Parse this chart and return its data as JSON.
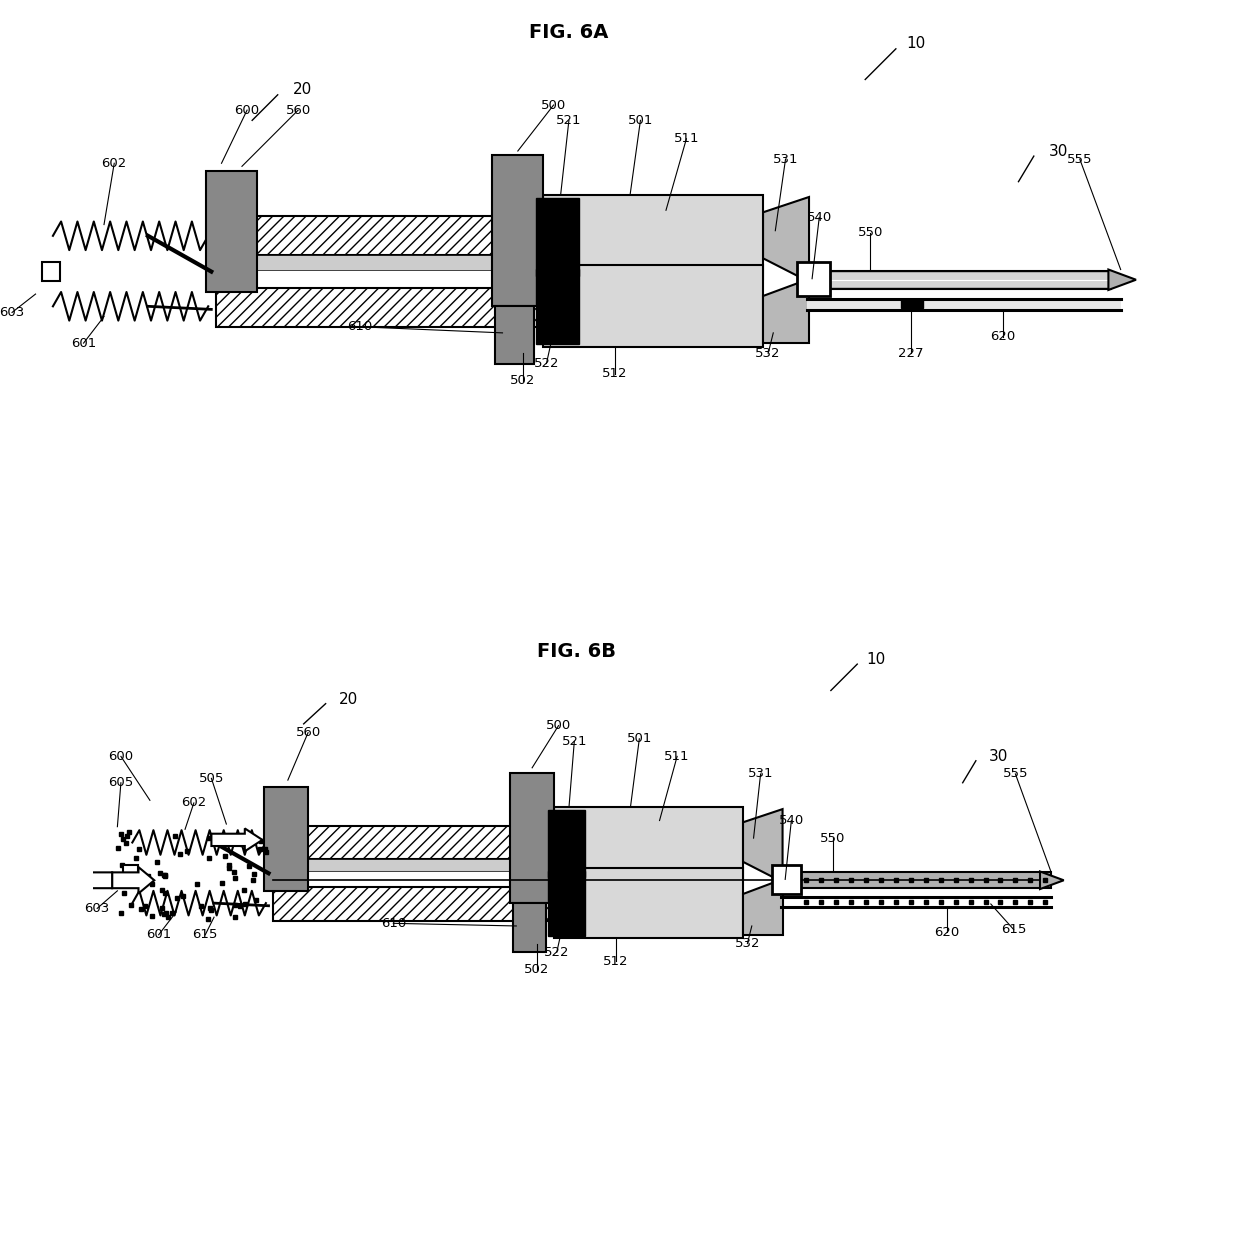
{
  "fig_title_a": "FIG. 6A",
  "fig_title_b": "FIG. 6B",
  "background_color": "#ffffff",
  "title_fontsize": 14,
  "label_fontsize": 11
}
